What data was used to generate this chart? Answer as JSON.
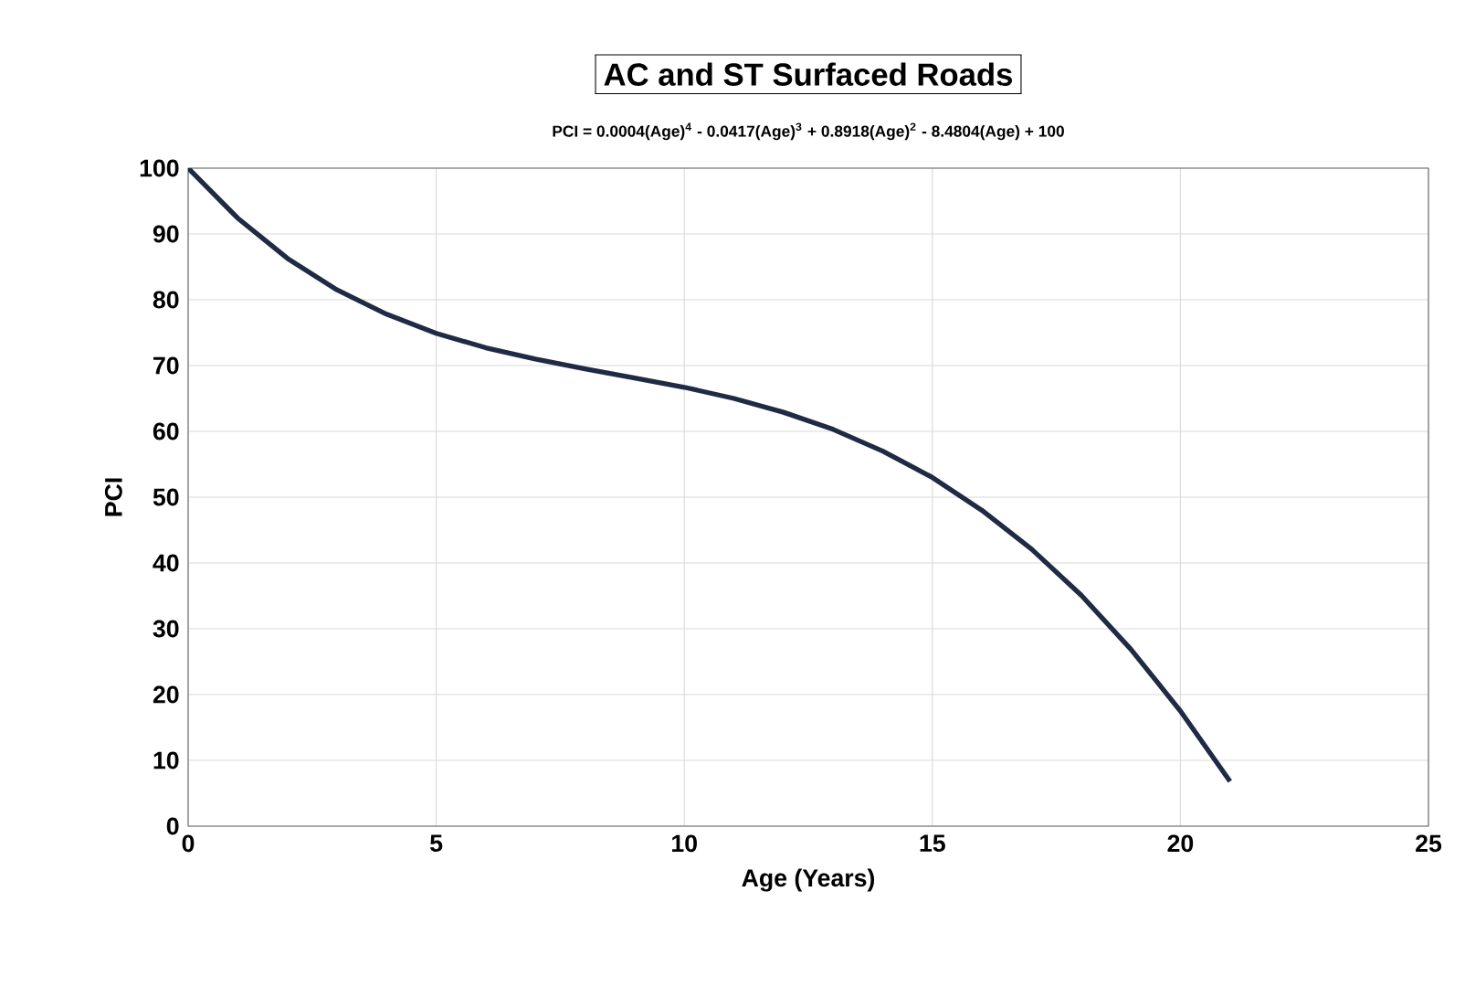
{
  "chart_data": {
    "type": "line",
    "title": "AC and ST Surfaced Roads",
    "subtitle": "PCI = 0.0004(Age)$^{4}$ - 0.0417(Age)$^{3}$ + 0.8918(Age)$^{2}$ - 8.4804(Age) + 100",
    "xlabel": "Age (Years)",
    "ylabel": "PCI",
    "x": [
      0,
      1,
      2,
      3,
      4,
      5,
      6,
      7,
      8,
      9,
      10,
      11,
      12,
      13,
      14,
      15,
      16,
      17,
      18,
      19,
      20,
      21
    ],
    "series": [
      {
        "color": "#1f2a44",
        "values": [
          100,
          92.4,
          86.3,
          81.5,
          77.8,
          74.9,
          72.7,
          71.0,
          69.5,
          68.1,
          66.7,
          65.0,
          62.9,
          60.3,
          57.0,
          53.0,
          48.0,
          42.1,
          35.1,
          26.9,
          17.5,
          6.8
        ]
      }
    ],
    "xlim": [
      0,
      25
    ],
    "xticks": [
      0,
      5,
      10,
      15,
      20,
      25
    ],
    "ylim": [
      0,
      100
    ],
    "yticks": [
      0,
      10,
      20,
      30,
      40,
      50,
      60,
      70,
      80,
      90,
      100
    ],
    "grid": true,
    "marker": "none",
    "line_style": "solid"
  }
}
